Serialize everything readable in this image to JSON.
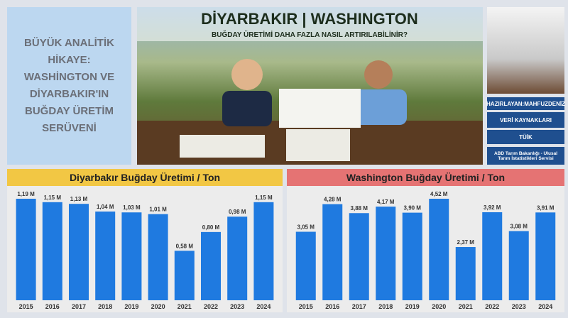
{
  "story": {
    "title": "BÜYÜK ANALİTİK HİKAYE: WASHİNGTON VE DİYARBAKIR'IN BUĞDAY ÜRETİM SERÜVENİ"
  },
  "banner": {
    "title": "DİYARBAKIR | WASHINGTON",
    "subtitle": "BUĞDAY ÜRETİMİ DAHA FAZLA NASIL ARTIRILABİLİNİR?"
  },
  "sidebar": {
    "author": "HAZIRLAYAN:MAHFUZDENİZ",
    "sources_heading": "VERİ KAYNAKLARI",
    "sources": [
      "TÜİK",
      "ABD Tarım Bakanlığı - Ulusal Tarım İstatistikleri Servisi"
    ]
  },
  "chart_data": [
    {
      "type": "bar",
      "title": "Diyarbakır Buğday Üretimi / Ton",
      "title_color": "#f2c744",
      "color": "#1f7ae0",
      "categories": [
        "2015",
        "2016",
        "2017",
        "2018",
        "2019",
        "2020",
        "2021",
        "2022",
        "2023",
        "2024"
      ],
      "values": [
        1.19,
        1.15,
        1.13,
        1.04,
        1.03,
        1.01,
        0.58,
        0.8,
        0.98,
        1.15
      ],
      "value_labels": [
        "1,19 M",
        "1,15 M",
        "1,13 M",
        "1,04 M",
        "1,03 M",
        "1,01 M",
        "0,58 M",
        "0,80 M",
        "0,98 M",
        "1,15 M"
      ]
    },
    {
      "type": "bar",
      "title": "Washington Buğday Üretimi / Ton",
      "title_color": "#e57373",
      "color": "#1f7ae0",
      "categories": [
        "2015",
        "2016",
        "2017",
        "2018",
        "2019",
        "2020",
        "2021",
        "2022",
        "2023",
        "2024"
      ],
      "values": [
        3.05,
        4.28,
        3.88,
        4.17,
        3.9,
        4.52,
        2.37,
        3.92,
        3.08,
        3.91
      ],
      "value_labels": [
        "3,05 M",
        "4,28 M",
        "3,88 M",
        "4,17 M",
        "3,90 M",
        "4,52 M",
        "2,37 M",
        "3,92 M",
        "3,08 M",
        "3,91 M"
      ]
    }
  ]
}
